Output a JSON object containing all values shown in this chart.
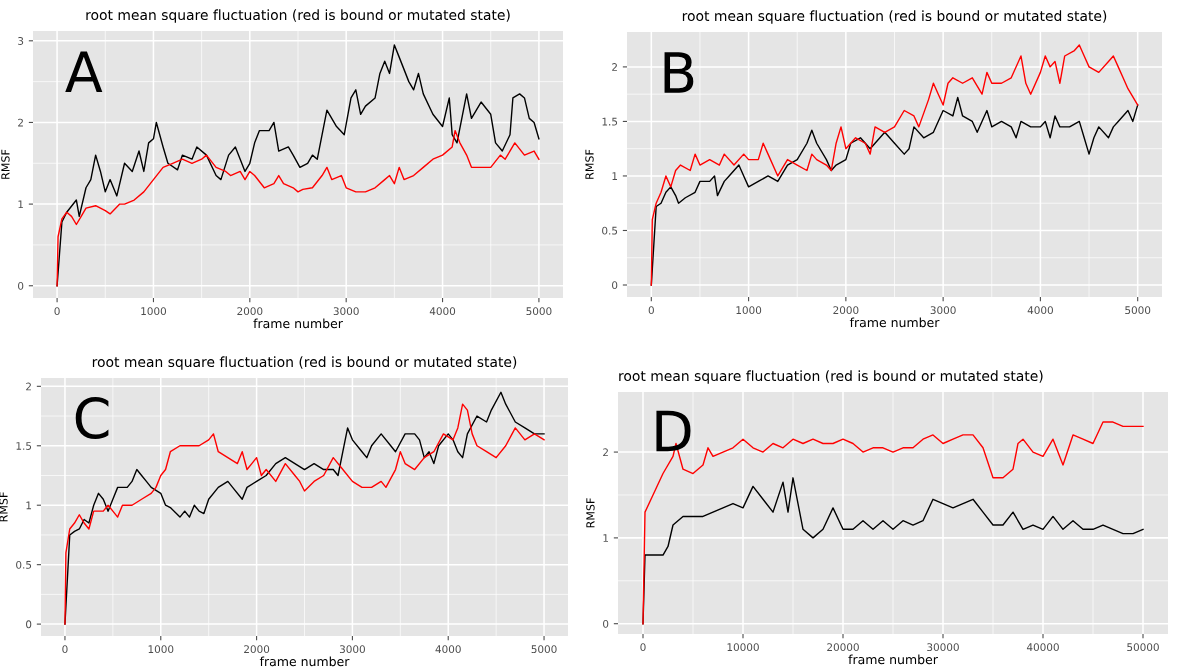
{
  "chart_data": [
    {
      "type": "line",
      "title": "root mean square fluctuation (red is bound or mutated state)",
      "xlabel": "frame number",
      "ylabel": "RMSF",
      "annotations": [
        "A"
      ],
      "xlim": [
        -250,
        5250
      ],
      "ylim": [
        -0.15,
        3.12
      ],
      "xticks": [
        0,
        1000,
        2000,
        3000,
        4000,
        5000
      ],
      "yticks": [
        0,
        1,
        2,
        3
      ],
      "grid": true,
      "legend": false,
      "series": [
        {
          "color": "#000000",
          "x": [
            0,
            50,
            100,
            200,
            230,
            300,
            350,
            400,
            450,
            500,
            550,
            620,
            700,
            780,
            850,
            900,
            950,
            1000,
            1030,
            1100,
            1150,
            1250,
            1300,
            1400,
            1450,
            1550,
            1650,
            1700,
            1780,
            1850,
            1900,
            1950,
            2000,
            2050,
            2100,
            2200,
            2250,
            2300,
            2400,
            2450,
            2520,
            2600,
            2650,
            2700,
            2800,
            2900,
            2980,
            3050,
            3100,
            3150,
            3200,
            3300,
            3350,
            3400,
            3450,
            3500,
            3550,
            3650,
            3700,
            3750,
            3800,
            3900,
            4000,
            4070,
            4100,
            4150,
            4250,
            4300,
            4400,
            4500,
            4550,
            4620,
            4700,
            4730,
            4800,
            4850,
            4900,
            4950,
            5000
          ],
          "values": [
            0,
            0.78,
            0.9,
            1.05,
            0.85,
            1.2,
            1.3,
            1.6,
            1.4,
            1.15,
            1.3,
            1.1,
            1.5,
            1.4,
            1.65,
            1.4,
            1.75,
            1.8,
            2.0,
            1.7,
            1.5,
            1.42,
            1.6,
            1.55,
            1.7,
            1.6,
            1.35,
            1.3,
            1.6,
            1.7,
            1.55,
            1.4,
            1.5,
            1.75,
            1.9,
            1.9,
            2.0,
            1.65,
            1.7,
            1.6,
            1.45,
            1.5,
            1.6,
            1.55,
            2.15,
            1.95,
            1.85,
            2.3,
            2.4,
            2.1,
            2.2,
            2.3,
            2.6,
            2.75,
            2.6,
            2.95,
            2.8,
            2.5,
            2.4,
            2.6,
            2.35,
            2.1,
            1.95,
            2.3,
            1.85,
            1.75,
            2.35,
            2.05,
            2.25,
            2.1,
            1.75,
            1.65,
            1.85,
            2.3,
            2.35,
            2.3,
            2.05,
            2.0,
            1.8
          ]
        },
        {
          "color": "#ff0000",
          "x": [
            0,
            10,
            50,
            100,
            150,
            200,
            250,
            300,
            400,
            500,
            550,
            650,
            700,
            800,
            900,
            1000,
            1100,
            1200,
            1300,
            1400,
            1500,
            1550,
            1650,
            1750,
            1800,
            1900,
            1950,
            2000,
            2050,
            2150,
            2250,
            2300,
            2350,
            2450,
            2500,
            2550,
            2650,
            2750,
            2800,
            2850,
            2950,
            3000,
            3100,
            3200,
            3300,
            3400,
            3450,
            3500,
            3550,
            3600,
            3700,
            3800,
            3900,
            4000,
            4100,
            4130,
            4180,
            4250,
            4300,
            4400,
            4500,
            4600,
            4650,
            4750,
            4850,
            4950,
            5000
          ],
          "values": [
            0,
            0.6,
            0.82,
            0.9,
            0.85,
            0.75,
            0.85,
            0.95,
            0.98,
            0.92,
            0.88,
            1.0,
            1.0,
            1.05,
            1.15,
            1.3,
            1.45,
            1.5,
            1.55,
            1.5,
            1.55,
            1.6,
            1.45,
            1.4,
            1.35,
            1.4,
            1.3,
            1.4,
            1.35,
            1.2,
            1.25,
            1.35,
            1.25,
            1.2,
            1.15,
            1.18,
            1.2,
            1.35,
            1.45,
            1.3,
            1.35,
            1.2,
            1.15,
            1.15,
            1.2,
            1.3,
            1.35,
            1.25,
            1.45,
            1.3,
            1.35,
            1.45,
            1.55,
            1.6,
            1.7,
            1.9,
            1.75,
            1.6,
            1.45,
            1.45,
            1.45,
            1.6,
            1.55,
            1.75,
            1.6,
            1.65,
            1.55
          ]
        }
      ]
    },
    {
      "type": "line",
      "title": "root mean square fluctuation (red is bound or mutated state)",
      "xlabel": "frame number",
      "ylabel": "RMSF",
      "annotations": [
        "B"
      ],
      "xlim": [
        -250,
        5250
      ],
      "ylim": [
        -0.11,
        2.32
      ],
      "xticks": [
        0,
        1000,
        2000,
        3000,
        4000,
        5000
      ],
      "yticks": [
        0,
        0.5,
        1,
        1.5,
        2
      ],
      "grid": true,
      "legend": false,
      "series": [
        {
          "color": "#000000",
          "x": [
            0,
            50,
            100,
            150,
            200,
            250,
            280,
            350,
            450,
            500,
            600,
            650,
            680,
            750,
            800,
            900,
            950,
            1000,
            1100,
            1200,
            1300,
            1400,
            1500,
            1600,
            1650,
            1700,
            1800,
            1850,
            1900,
            2000,
            2050,
            2150,
            2250,
            2300,
            2400,
            2500,
            2600,
            2650,
            2700,
            2800,
            2900,
            3000,
            3100,
            3150,
            3200,
            3300,
            3350,
            3450,
            3500,
            3600,
            3700,
            3750,
            3800,
            3900,
            4000,
            4050,
            4100,
            4150,
            4200,
            4300,
            4400,
            4450,
            4500,
            4550,
            4600,
            4700,
            4750,
            4800,
            4900,
            4950,
            5000
          ],
          "values": [
            0,
            0.72,
            0.75,
            0.85,
            0.9,
            0.82,
            0.75,
            0.8,
            0.85,
            0.95,
            0.95,
            1.0,
            0.82,
            0.95,
            1.0,
            1.1,
            1.0,
            0.9,
            0.95,
            1.0,
            0.95,
            1.1,
            1.15,
            1.3,
            1.42,
            1.3,
            1.15,
            1.05,
            1.1,
            1.15,
            1.3,
            1.35,
            1.25,
            1.3,
            1.4,
            1.3,
            1.2,
            1.25,
            1.45,
            1.35,
            1.4,
            1.6,
            1.55,
            1.72,
            1.55,
            1.5,
            1.4,
            1.6,
            1.45,
            1.5,
            1.45,
            1.35,
            1.5,
            1.45,
            1.45,
            1.5,
            1.35,
            1.55,
            1.45,
            1.45,
            1.5,
            1.35,
            1.2,
            1.35,
            1.45,
            1.35,
            1.45,
            1.5,
            1.6,
            1.5,
            1.65
          ]
        },
        {
          "color": "#ff0000",
          "x": [
            0,
            10,
            50,
            100,
            150,
            200,
            250,
            300,
            400,
            450,
            500,
            600,
            700,
            750,
            850,
            950,
            1000,
            1100,
            1150,
            1200,
            1300,
            1400,
            1500,
            1600,
            1650,
            1700,
            1800,
            1850,
            1900,
            1950,
            2000,
            2100,
            2200,
            2250,
            2300,
            2400,
            2500,
            2600,
            2700,
            2750,
            2850,
            2900,
            2950,
            3000,
            3050,
            3100,
            3200,
            3300,
            3400,
            3450,
            3500,
            3600,
            3700,
            3800,
            3850,
            3900,
            4000,
            4050,
            4100,
            4150,
            4200,
            4250,
            4350,
            4400,
            4450,
            4500,
            4600,
            4700,
            4750,
            4800,
            4850,
            4900,
            5000
          ],
          "values": [
            0,
            0.6,
            0.75,
            0.85,
            1.0,
            0.9,
            1.05,
            1.1,
            1.05,
            1.2,
            1.1,
            1.15,
            1.1,
            1.2,
            1.1,
            1.2,
            1.15,
            1.15,
            1.3,
            1.2,
            1.0,
            1.15,
            1.1,
            1.05,
            1.2,
            1.15,
            1.1,
            1.05,
            1.3,
            1.45,
            1.25,
            1.35,
            1.3,
            1.2,
            1.45,
            1.4,
            1.45,
            1.6,
            1.55,
            1.45,
            1.7,
            1.85,
            1.75,
            1.65,
            1.85,
            1.9,
            1.85,
            1.9,
            1.75,
            1.95,
            1.85,
            1.85,
            1.9,
            2.1,
            1.85,
            1.75,
            1.95,
            2.1,
            2.0,
            2.05,
            1.85,
            2.1,
            2.15,
            2.2,
            2.1,
            2.0,
            1.95,
            2.05,
            2.1,
            2.0,
            1.9,
            1.8,
            1.65
          ]
        }
      ]
    },
    {
      "type": "line",
      "title": "root mean square fluctuation (red is bound or mutated state)",
      "xlabel": "frame number",
      "ylabel": "RMSF",
      "annotations": [
        "C"
      ],
      "xlim": [
        -250,
        5250
      ],
      "ylim": [
        -0.1,
        2.07
      ],
      "xticks": [
        0,
        1000,
        2000,
        3000,
        4000,
        5000
      ],
      "yticks": [
        0,
        0.5,
        1,
        1.5,
        2
      ],
      "grid": true,
      "legend": false,
      "series": [
        {
          "color": "#000000",
          "x": [
            0,
            50,
            100,
            150,
            200,
            250,
            300,
            350,
            400,
            450,
            500,
            550,
            650,
            700,
            750,
            800,
            850,
            900,
            1000,
            1050,
            1100,
            1200,
            1250,
            1300,
            1350,
            1400,
            1450,
            1500,
            1600,
            1700,
            1750,
            1850,
            1900,
            2000,
            2100,
            2200,
            2300,
            2400,
            2500,
            2600,
            2700,
            2800,
            2850,
            2900,
            2950,
            3000,
            3100,
            3150,
            3200,
            3300,
            3400,
            3450,
            3550,
            3650,
            3700,
            3750,
            3800,
            3850,
            3900,
            4000,
            4050,
            4100,
            4150,
            4200,
            4300,
            4400,
            4450,
            4550,
            4600,
            4700,
            4800,
            4900,
            5000
          ],
          "values": [
            0,
            0.75,
            0.78,
            0.8,
            0.88,
            0.85,
            1.0,
            1.1,
            1.05,
            0.95,
            1.05,
            1.15,
            1.15,
            1.2,
            1.3,
            1.25,
            1.2,
            1.15,
            1.1,
            1.0,
            0.98,
            0.9,
            0.95,
            0.9,
            1.0,
            0.95,
            0.93,
            1.05,
            1.15,
            1.2,
            1.15,
            1.05,
            1.15,
            1.2,
            1.25,
            1.35,
            1.4,
            1.35,
            1.3,
            1.35,
            1.3,
            1.3,
            1.25,
            1.45,
            1.65,
            1.55,
            1.45,
            1.4,
            1.5,
            1.6,
            1.5,
            1.45,
            1.6,
            1.6,
            1.55,
            1.4,
            1.45,
            1.35,
            1.5,
            1.6,
            1.55,
            1.45,
            1.4,
            1.6,
            1.75,
            1.7,
            1.8,
            1.95,
            1.85,
            1.7,
            1.65,
            1.6,
            1.6
          ]
        },
        {
          "color": "#ff0000",
          "x": [
            0,
            10,
            50,
            100,
            150,
            200,
            250,
            300,
            400,
            450,
            500,
            550,
            600,
            700,
            800,
            900,
            950,
            1000,
            1050,
            1100,
            1200,
            1300,
            1400,
            1500,
            1550,
            1600,
            1700,
            1800,
            1850,
            1900,
            1950,
            2000,
            2050,
            2100,
            2200,
            2300,
            2400,
            2450,
            2500,
            2600,
            2700,
            2800,
            2900,
            3000,
            3100,
            3200,
            3300,
            3350,
            3450,
            3500,
            3550,
            3650,
            3750,
            3850,
            3950,
            4050,
            4100,
            4150,
            4200,
            4250,
            4300,
            4400,
            4500,
            4600,
            4700,
            4800,
            4900,
            5000
          ],
          "values": [
            0,
            0.6,
            0.8,
            0.85,
            0.92,
            0.85,
            0.8,
            0.95,
            0.95,
            1.0,
            0.95,
            0.9,
            1.0,
            1.0,
            1.05,
            1.1,
            1.15,
            1.25,
            1.3,
            1.45,
            1.5,
            1.5,
            1.5,
            1.55,
            1.6,
            1.45,
            1.4,
            1.35,
            1.45,
            1.3,
            1.35,
            1.4,
            1.25,
            1.3,
            1.2,
            1.35,
            1.25,
            1.2,
            1.12,
            1.2,
            1.25,
            1.4,
            1.3,
            1.2,
            1.15,
            1.15,
            1.2,
            1.15,
            1.3,
            1.45,
            1.35,
            1.3,
            1.4,
            1.45,
            1.6,
            1.55,
            1.65,
            1.85,
            1.8,
            1.6,
            1.5,
            1.45,
            1.4,
            1.5,
            1.65,
            1.55,
            1.6,
            1.55
          ]
        }
      ]
    },
    {
      "type": "line",
      "title": "root mean square fluctuation (red is bound or mutated state)",
      "xlabel": "frame number",
      "ylabel": "RMSF",
      "annotations": [
        "D"
      ],
      "xlim": [
        -2500,
        52500
      ],
      "ylim": [
        -0.12,
        2.7
      ],
      "xticks": [
        0,
        10000,
        20000,
        30000,
        40000,
        50000
      ],
      "yticks": [
        0,
        1,
        2
      ],
      "grid": true,
      "legend": false,
      "series": [
        {
          "color": "#000000",
          "x": [
            0,
            200,
            1000,
            2000,
            2500,
            3000,
            4000,
            5000,
            6000,
            7000,
            8000,
            9000,
            10000,
            11000,
            12000,
            13000,
            14000,
            14500,
            15000,
            15500,
            16000,
            17000,
            18000,
            19000,
            20000,
            21000,
            22000,
            23000,
            24000,
            25000,
            26000,
            27000,
            28000,
            29000,
            30000,
            31000,
            32000,
            33000,
            34000,
            35000,
            36000,
            37000,
            38000,
            39000,
            40000,
            41000,
            42000,
            43000,
            44000,
            45000,
            46000,
            47000,
            48000,
            49000,
            50000
          ],
          "values": [
            0,
            0.8,
            0.8,
            0.8,
            0.9,
            1.15,
            1.25,
            1.25,
            1.25,
            1.3,
            1.35,
            1.4,
            1.35,
            1.6,
            1.45,
            1.3,
            1.65,
            1.3,
            1.7,
            1.4,
            1.1,
            1.0,
            1.1,
            1.35,
            1.1,
            1.1,
            1.2,
            1.1,
            1.2,
            1.1,
            1.2,
            1.15,
            1.2,
            1.45,
            1.4,
            1.35,
            1.4,
            1.45,
            1.3,
            1.15,
            1.15,
            1.3,
            1.1,
            1.15,
            1.1,
            1.25,
            1.1,
            1.2,
            1.1,
            1.1,
            1.15,
            1.1,
            1.05,
            1.05,
            1.1
          ]
        },
        {
          "color": "#ff0000",
          "x": [
            0,
            200,
            1000,
            2000,
            3000,
            3300,
            4000,
            5000,
            6000,
            6500,
            7000,
            8000,
            9000,
            10000,
            11000,
            12000,
            13000,
            14000,
            15000,
            16000,
            17000,
            18000,
            19000,
            20000,
            21000,
            22000,
            23000,
            24000,
            25000,
            26000,
            27000,
            28000,
            29000,
            30000,
            31000,
            32000,
            33000,
            34000,
            35000,
            36000,
            37000,
            37500,
            38000,
            39000,
            40000,
            41000,
            42000,
            43000,
            44000,
            45000,
            46000,
            47000,
            48000,
            49000,
            50000
          ],
          "values": [
            0,
            1.3,
            1.5,
            1.75,
            1.95,
            2.1,
            1.8,
            1.75,
            1.85,
            2.05,
            1.95,
            2.0,
            2.05,
            2.15,
            2.05,
            2.0,
            2.1,
            2.05,
            2.15,
            2.1,
            2.15,
            2.1,
            2.1,
            2.15,
            2.1,
            2.0,
            2.05,
            2.05,
            2.0,
            2.05,
            2.05,
            2.15,
            2.2,
            2.1,
            2.15,
            2.2,
            2.2,
            2.05,
            1.7,
            1.7,
            1.8,
            2.1,
            2.15,
            2.0,
            1.95,
            2.15,
            1.85,
            2.2,
            2.15,
            2.1,
            2.35,
            2.35,
            2.3,
            2.3,
            2.3
          ]
        }
      ]
    }
  ]
}
